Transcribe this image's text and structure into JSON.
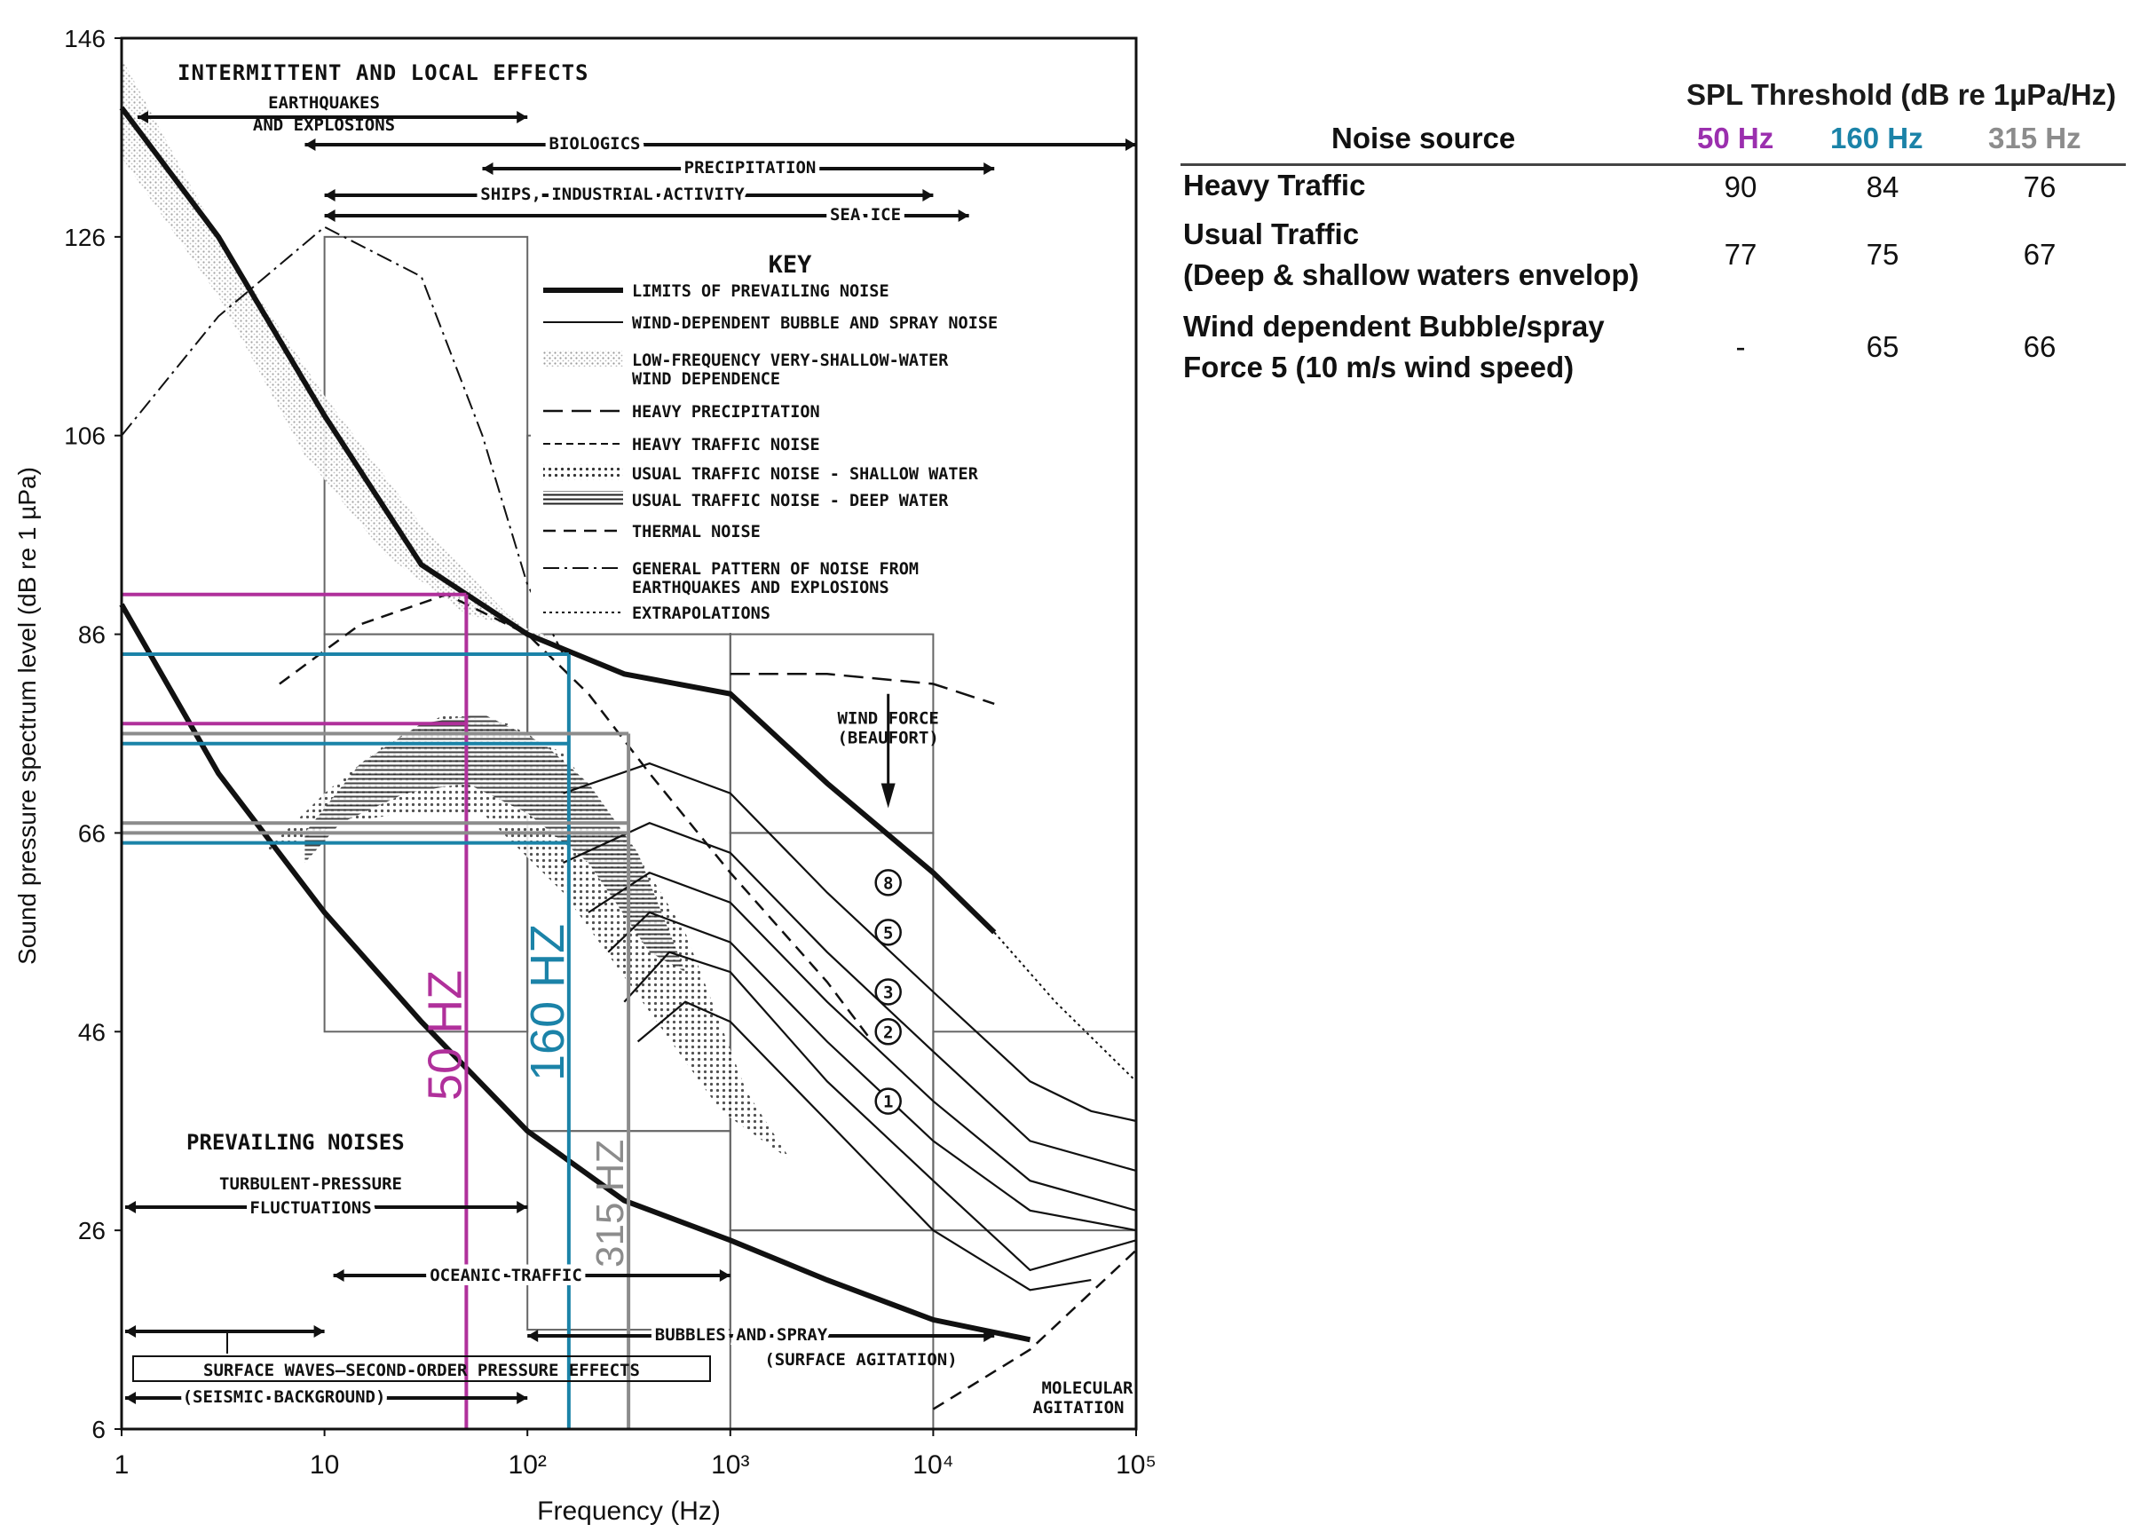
{
  "chart_data": {
    "type": "line",
    "xlabel": "Frequency  (Hz)",
    "ylabel": "Sound pressure spectrum level  (dB re 1 µPa)",
    "x_scale": "log",
    "xlim": [
      1,
      100000
    ],
    "ylim": [
      6,
      146
    ],
    "x_ticks": [
      "1",
      "10",
      "10²",
      "10³",
      "10⁴",
      "10⁵"
    ],
    "y_ticks": [
      "146",
      "126",
      "106",
      "86",
      "66",
      "46",
      "26",
      "6"
    ],
    "top_banner": "INTERMITTENT AND LOCAL EFFECTS",
    "intermittent_sources": [
      "EARTHQUAKES AND EXPLOSIONS",
      "BIOLOGICS",
      "PRECIPITATION",
      "SHIPS,  INDUSTRIAL  ACTIVITY",
      "SEA ICE"
    ],
    "prevailing_title": "PREVAILING NOISES",
    "prevailing_sources": [
      "TURBULENT-PRESSURE FLUCTUATIONS",
      "OCEANIC  TRAFFIC",
      "BUBBLES AND SPRAY",
      "(SURFACE AGITATION)",
      "SURFACE WAVES—SECOND-ORDER PRESSURE EFFECTS",
      "(SEISMIC  BACKGROUND)",
      "MOLECULAR AGITATION"
    ],
    "key_title": "KEY",
    "key_items": [
      "LIMITS OF PREVAILING NOISE",
      "WIND-DEPENDENT BUBBLE AND SPRAY NOISE",
      "LOW-FREQUENCY VERY-SHALLOW-WATER WIND DEPENDENCE",
      "HEAVY PRECIPITATION",
      "HEAVY TRAFFIC NOISE",
      "USUAL TRAFFIC NOISE - SHALLOW WATER",
      "USUAL TRAFFIC NOISE - DEEP WATER",
      "THERMAL NOISE",
      "GENERAL PATTERN OF NOISE FROM EARTHQUAKES AND EXPLOSIONS",
      "EXTRAPOLATIONS"
    ],
    "wind_force_label": "WIND FORCE (BEAUFORT)",
    "wind_force_markers": [
      "8",
      "5",
      "3",
      "2",
      "1"
    ],
    "frequency_markers": [
      {
        "label": "50 HZ",
        "frequency": 50,
        "color": "#b0309b",
        "levels": [
          90,
          77
        ]
      },
      {
        "label": "160 HZ",
        "frequency": 160,
        "color": "#1b83a8",
        "levels": [
          84,
          75,
          65
        ]
      },
      {
        "label": "315 HZ",
        "frequency": 315,
        "color": "#8c8c8c",
        "levels": [
          76,
          67,
          66
        ]
      }
    ],
    "series": [
      {
        "name": "LIMITS OF PREVAILING NOISE",
        "x": [
          1,
          3,
          10,
          30,
          100,
          300,
          1000,
          3000,
          10000,
          20000
        ],
        "y": [
          139,
          126,
          108,
          93,
          86,
          82,
          80,
          71,
          62,
          56
        ]
      },
      {
        "name": "LIMITS OF PREVAILING NOISE",
        "x": [
          1,
          3,
          10,
          30,
          100,
          300,
          1000,
          3000,
          10000,
          30000
        ],
        "y": [
          89,
          72,
          58,
          47,
          36,
          29,
          25,
          21,
          17,
          15
        ]
      },
      {
        "name": "HEAVY TRAFFIC NOISE",
        "x": [
          6,
          15,
          40,
          100,
          200,
          400,
          1000,
          3000,
          5000
        ],
        "y": [
          81,
          87,
          90,
          86,
          80,
          72,
          62,
          51,
          45
        ]
      },
      {
        "name": "GENERAL PATTERN OF NOISE FROM EARTHQUAKES AND EXPLOSIONS",
        "x": [
          1,
          3,
          10,
          30,
          60,
          100,
          150
        ],
        "y": [
          106,
          118,
          127,
          122,
          106,
          91,
          84
        ]
      }
    ]
  },
  "table": {
    "header_top": "SPL Threshold (dB re 1µPa/Hz)",
    "source_header": "Noise source",
    "columns": [
      {
        "label": "50 Hz",
        "color": "#9b2fae"
      },
      {
        "label": "160 Hz",
        "color": "#1b83a8"
      },
      {
        "label": "315 Hz",
        "color": "#8c8c8c"
      }
    ],
    "rows": [
      {
        "source_lines": [
          "Heavy Traffic"
        ],
        "values": [
          "90",
          "84",
          "76"
        ]
      },
      {
        "source_lines": [
          "Usual Traffic",
          "(Deep & shallow waters envelop)"
        ],
        "values": [
          "77",
          "75",
          "67"
        ]
      },
      {
        "source_lines": [
          "Wind dependent Bubble/spray",
          "Force 5 (10 m/s wind speed)"
        ],
        "values": [
          "-",
          "65",
          "66"
        ]
      }
    ]
  }
}
